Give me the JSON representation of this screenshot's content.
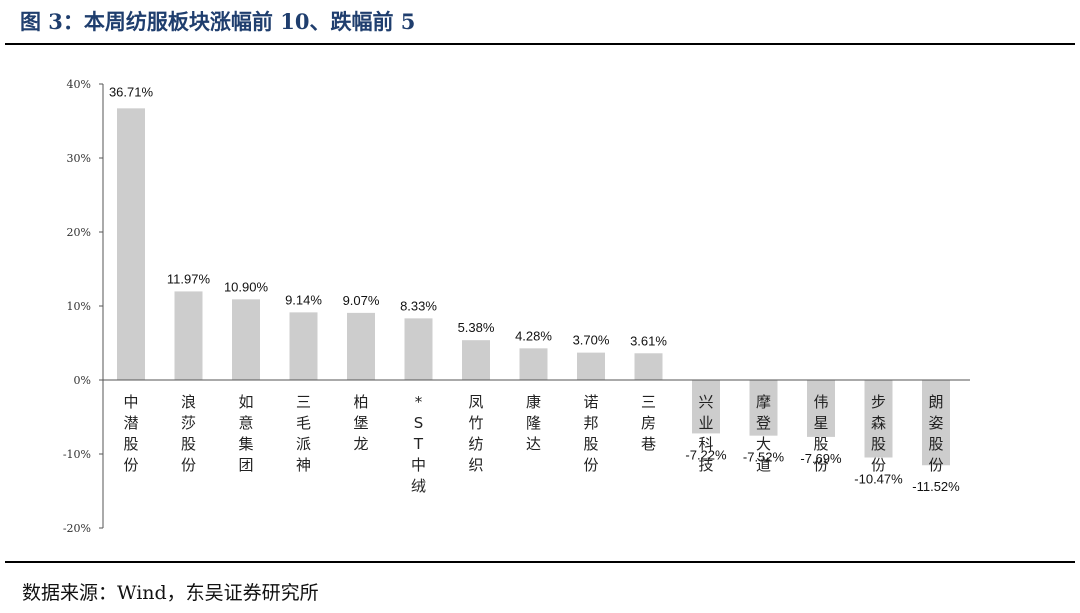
{
  "header": {
    "title": "图 3：本周纺服板块涨幅前 10、跌幅前 5"
  },
  "footer": {
    "source": "数据来源：Wind，东吴证券研究所"
  },
  "chart_data": {
    "type": "bar",
    "title": "图 3：本周纺服板块涨幅前 10、跌幅前 5",
    "xlabel": "",
    "ylabel": "",
    "ylim": [
      -20,
      40
    ],
    "yticks": [
      40,
      30,
      20,
      10,
      0,
      -10,
      -20
    ],
    "ytick_labels": [
      "40%",
      "30%",
      "20%",
      "10%",
      "0%",
      "-10%",
      "-20%"
    ],
    "grid": false,
    "bar_color": "#cdcdcd",
    "categories": [
      "中潜股份",
      "浪莎股份",
      "如意集团",
      "三毛派神",
      "柏堡龙",
      "*ST中绒",
      "凤竹纺织",
      "康隆达",
      "诺邦股份",
      "三房巷",
      "兴业科技",
      "摩登大道",
      "伟星股份",
      "步森股份",
      "朗姿股份"
    ],
    "values": [
      36.71,
      11.97,
      10.9,
      9.14,
      9.07,
      8.33,
      5.38,
      4.28,
      3.7,
      3.61,
      -7.22,
      -7.52,
      -7.69,
      -10.47,
      -11.52
    ],
    "data_labels": [
      "36.71%",
      "11.97%",
      "10.90%",
      "9.14%",
      "9.07%",
      "8.33%",
      "5.38%",
      "4.28%",
      "3.70%",
      "3.61%",
      "-7.22%",
      "-7.52%",
      "-7.69%",
      "-10.47%",
      "-11.52%"
    ]
  }
}
